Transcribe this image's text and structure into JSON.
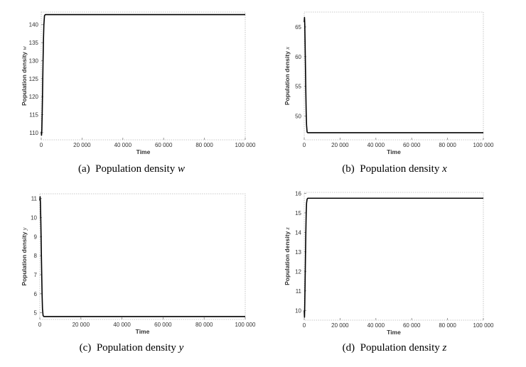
{
  "chart_data": [
    {
      "type": "line",
      "caption_tag": "(a)",
      "caption_text": "Population density",
      "caption_symbol": "w",
      "xlabel": "Time",
      "ylabel": "Population density",
      "ylabel_symbol": "w",
      "xlim": [
        0,
        100000
      ],
      "ylim": [
        108,
        143.5
      ],
      "xticks": [
        0,
        20000,
        40000,
        60000,
        80000,
        100000
      ],
      "xtick_labels": [
        "0",
        "20 000",
        "40 000",
        "60 000",
        "80 000",
        "100 000"
      ],
      "yticks": [
        110,
        115,
        120,
        125,
        130,
        135,
        140
      ],
      "ytick_labels": [
        "110",
        "115",
        "120",
        "125",
        "130",
        "135",
        "140"
      ],
      "x": [
        0,
        150,
        300,
        500,
        700,
        900,
        1100,
        1300,
        1600,
        2000,
        3000,
        100000
      ],
      "y": [
        110.2,
        109.3,
        110.8,
        116,
        123,
        130,
        136,
        140,
        142.5,
        142.8,
        142.8,
        142.8
      ]
    },
    {
      "type": "line",
      "caption_tag": "(b)",
      "caption_text": "Population density",
      "caption_symbol": "x",
      "xlabel": "Time",
      "ylabel": "Population density",
      "ylabel_symbol": "x",
      "xlim": [
        0,
        100000
      ],
      "ylim": [
        46,
        67.5
      ],
      "xticks": [
        0,
        20000,
        40000,
        60000,
        80000,
        100000
      ],
      "xtick_labels": [
        "0",
        "20 000",
        "40 000",
        "60 000",
        "80 000",
        "100 000"
      ],
      "yticks": [
        50,
        55,
        60,
        65
      ],
      "ytick_labels": [
        "50",
        "55",
        "60",
        "65"
      ],
      "x": [
        0,
        150,
        300,
        500,
        700,
        900,
        1100,
        1300,
        1600,
        2000,
        3000,
        100000
      ],
      "y": [
        65.8,
        66.6,
        65.5,
        62,
        58,
        54,
        50.5,
        48.5,
        47.3,
        47.2,
        47.2,
        47.2
      ]
    },
    {
      "type": "line",
      "caption_tag": "(c)",
      "caption_text": "Population density",
      "caption_symbol": "y",
      "xlabel": "Time",
      "ylabel": "Population density",
      "ylabel_symbol": "y",
      "xlim": [
        0,
        100000
      ],
      "ylim": [
        4.65,
        11.25
      ],
      "xticks": [
        0,
        20000,
        40000,
        60000,
        80000,
        100000
      ],
      "xtick_labels": [
        "0",
        "20 000",
        "40 000",
        "60 000",
        "80 000",
        "100 000"
      ],
      "yticks": [
        5,
        6,
        7,
        8,
        9,
        10,
        11
      ],
      "ytick_labels": [
        "5",
        "6",
        "7",
        "8",
        "9",
        "10",
        "11"
      ],
      "x": [
        0,
        150,
        300,
        500,
        700,
        900,
        1100,
        1300,
        1600,
        2000,
        3000,
        100000
      ],
      "y": [
        10.9,
        11.1,
        10.8,
        9.8,
        8.5,
        7.2,
        6.0,
        5.2,
        4.85,
        4.8,
        4.8,
        4.8
      ]
    },
    {
      "type": "line",
      "caption_tag": "(d)",
      "caption_text": "Population density",
      "caption_symbol": "z",
      "xlabel": "Time",
      "ylabel": "Population density",
      "ylabel_symbol": "z",
      "xlim": [
        0,
        100000
      ],
      "ylim": [
        9.5,
        16.05
      ],
      "xticks": [
        0,
        20000,
        40000,
        60000,
        80000,
        100000
      ],
      "xtick_labels": [
        "0",
        "20 000",
        "40 000",
        "60 000",
        "80 000",
        "100 000"
      ],
      "yticks": [
        10,
        11,
        12,
        13,
        14,
        15,
        16
      ],
      "ytick_labels": [
        "10",
        "11",
        "12",
        "13",
        "14",
        "15",
        "16"
      ],
      "x": [
        0,
        150,
        300,
        500,
        700,
        900,
        1100,
        1300,
        1600,
        2000,
        3000,
        100000
      ],
      "y": [
        10.0,
        9.65,
        10.3,
        11.5,
        12.8,
        14.0,
        15.0,
        15.5,
        15.7,
        15.75,
        15.75,
        15.75
      ]
    }
  ]
}
